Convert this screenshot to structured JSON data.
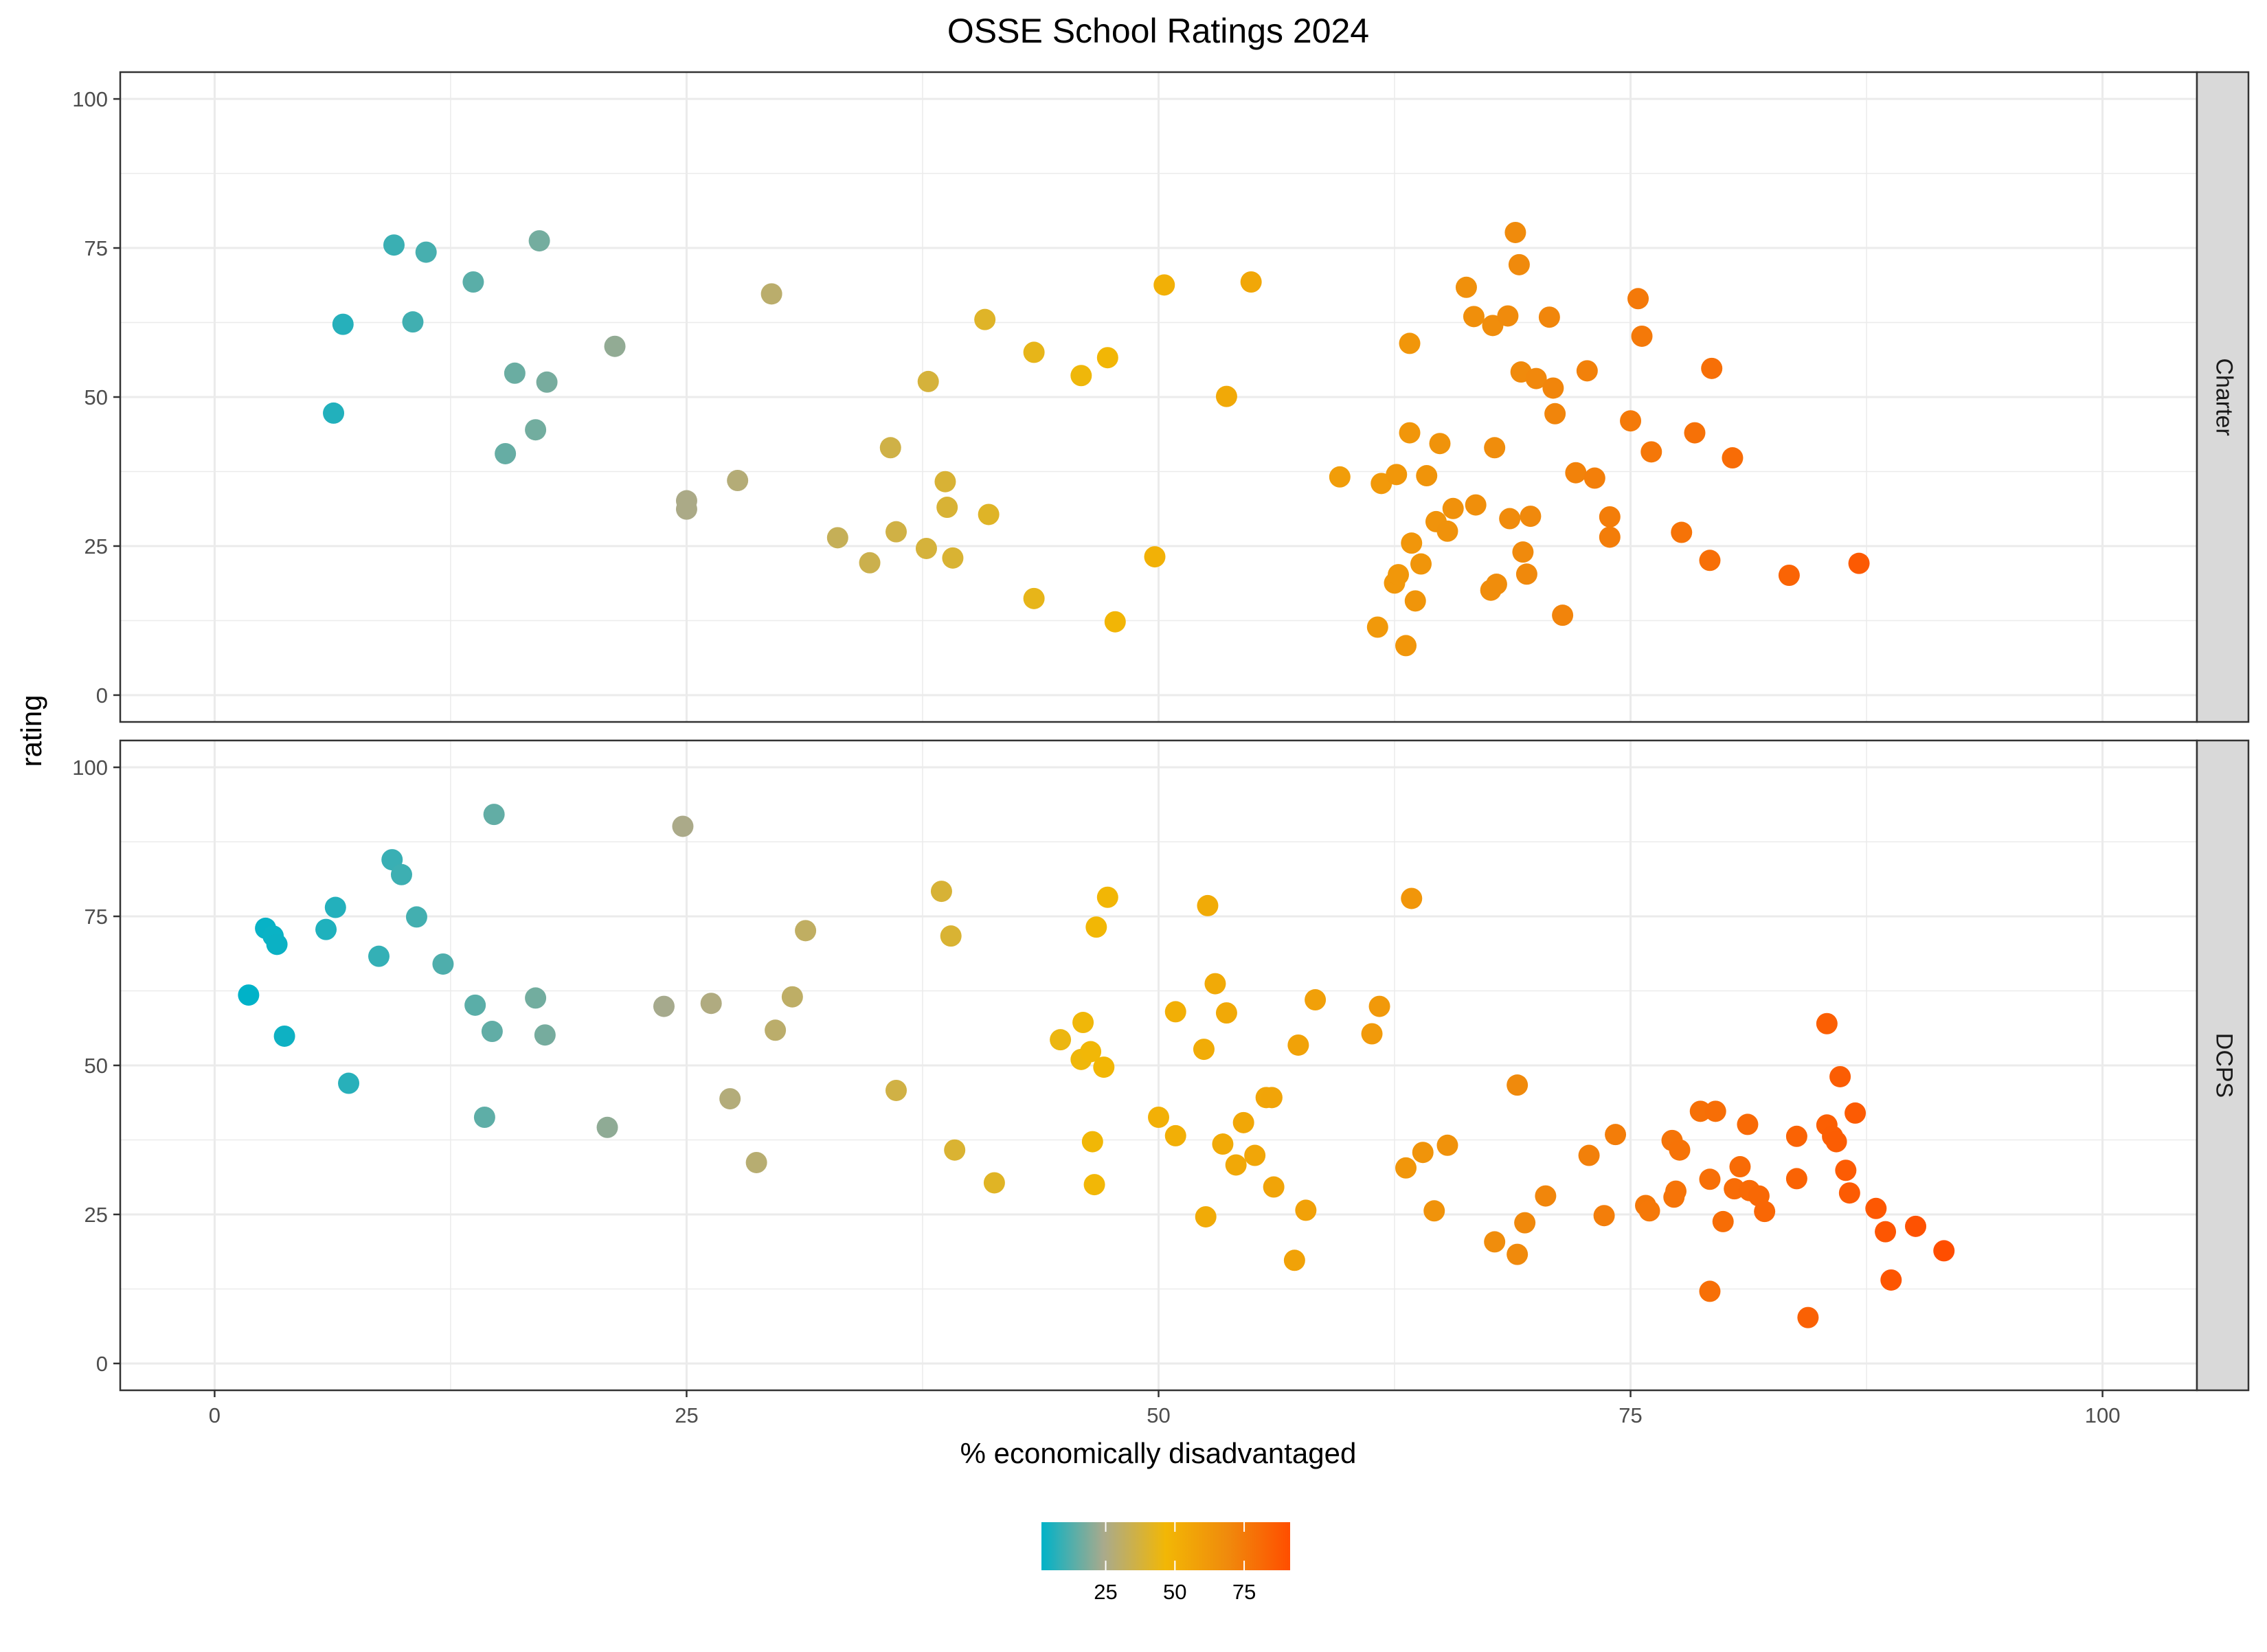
{
  "chart_data": {
    "type": "scatter",
    "title": "OSSE School Ratings 2024",
    "xlabel": "% economically disadvantaged",
    "ylabel": "rating",
    "xlim": [
      -5,
      105
    ],
    "ylim": [
      -4.5,
      104.5
    ],
    "x_ticks": [
      "0",
      "25",
      "50",
      "75",
      "100"
    ],
    "y_ticks": [
      "0",
      "25",
      "50",
      "75",
      "100"
    ],
    "grid": true,
    "facets": [
      {
        "name": "Charter",
        "points": [
          [
            6.3,
            47.3
          ],
          [
            6.8,
            62.2
          ],
          [
            9.5,
            75.5
          ],
          [
            11.2,
            74.3
          ],
          [
            10.5,
            62.6
          ],
          [
            13.7,
            69.3
          ],
          [
            17.2,
            76.2
          ],
          [
            15.9,
            54
          ],
          [
            17.6,
            52.5
          ],
          [
            17,
            44.5
          ],
          [
            15.4,
            40.5
          ],
          [
            21.2,
            58.5
          ],
          [
            25,
            32.6
          ],
          [
            25,
            31.2
          ],
          [
            27.7,
            36
          ],
          [
            29.5,
            67.3
          ],
          [
            33,
            26.4
          ],
          [
            34.7,
            22.2
          ],
          [
            35.8,
            41.5
          ],
          [
            36.1,
            27.4
          ],
          [
            37.7,
            24.6
          ],
          [
            37.8,
            52.6
          ],
          [
            38.7,
            35.8
          ],
          [
            38.8,
            31.5
          ],
          [
            39.1,
            23
          ],
          [
            40.8,
            63
          ],
          [
            41,
            30.3
          ],
          [
            43.4,
            57.5
          ],
          [
            43.4,
            16.2
          ],
          [
            45.9,
            53.6
          ],
          [
            47.3,
            56.6
          ],
          [
            47.7,
            12.3
          ],
          [
            49.8,
            23.2
          ],
          [
            50.3,
            68.8
          ],
          [
            53.6,
            50.1
          ],
          [
            54.9,
            69.3
          ],
          [
            59.6,
            36.6
          ],
          [
            61.6,
            11.4
          ],
          [
            61.8,
            35.5
          ],
          [
            62.5,
            18.8
          ],
          [
            62.7,
            20.2
          ],
          [
            62.6,
            37
          ],
          [
            63.1,
            8.3
          ],
          [
            63.3,
            59
          ],
          [
            63.3,
            44
          ],
          [
            63.4,
            25.5
          ],
          [
            63.6,
            15.8
          ],
          [
            63.9,
            22
          ],
          [
            64.2,
            36.8
          ],
          [
            64.7,
            29.1
          ],
          [
            64.9,
            42.2
          ],
          [
            65.3,
            27.5
          ],
          [
            65.6,
            31.3
          ],
          [
            66.3,
            68.4
          ],
          [
            66.7,
            63.5
          ],
          [
            66.8,
            31.9
          ],
          [
            67.6,
            17.6
          ],
          [
            67.7,
            62
          ],
          [
            67.8,
            41.5
          ],
          [
            67.9,
            18.6
          ],
          [
            68.5,
            63.6
          ],
          [
            68.6,
            29.6
          ],
          [
            68.9,
            77.6
          ],
          [
            69.1,
            72.2
          ],
          [
            69.2,
            54.2
          ],
          [
            69.3,
            24
          ],
          [
            69.5,
            20.3
          ],
          [
            69.7,
            30
          ],
          [
            70,
            53.1
          ],
          [
            70.7,
            63.4
          ],
          [
            70.9,
            51.5
          ],
          [
            71,
            47.2
          ],
          [
            71.4,
            13.4
          ],
          [
            72.1,
            37.3
          ],
          [
            72.7,
            54.4
          ],
          [
            73.1,
            36.4
          ],
          [
            73.9,
            29.9
          ],
          [
            73.9,
            26.5
          ],
          [
            75,
            46
          ],
          [
            75.4,
            66.5
          ],
          [
            75.6,
            60.2
          ],
          [
            76.1,
            40.8
          ],
          [
            77.7,
            27.3
          ],
          [
            78.4,
            44
          ],
          [
            79.2,
            22.6
          ],
          [
            79.3,
            54.8
          ],
          [
            80.4,
            39.8
          ],
          [
            83.4,
            20.1
          ],
          [
            87.1,
            22.1
          ]
        ]
      },
      {
        "name": "DCPS",
        "points": [
          [
            1.8,
            61.8
          ],
          [
            2.7,
            73
          ],
          [
            3.1,
            71.7
          ],
          [
            3.3,
            70.3
          ],
          [
            3.7,
            54.9
          ],
          [
            5.9,
            72.8
          ],
          [
            6.4,
            76.5
          ],
          [
            7.1,
            47
          ],
          [
            8.7,
            68.3
          ],
          [
            9.4,
            84.5
          ],
          [
            9.9,
            82
          ],
          [
            10.7,
            74.9
          ],
          [
            12.1,
            67
          ],
          [
            13.8,
            60.1
          ],
          [
            14.3,
            41.3
          ],
          [
            14.7,
            55.7
          ],
          [
            14.8,
            92.1
          ],
          [
            17,
            61.3
          ],
          [
            17.5,
            55.1
          ],
          [
            20.8,
            39.6
          ],
          [
            23.8,
            59.9
          ],
          [
            24.8,
            90.1
          ],
          [
            26.3,
            60.4
          ],
          [
            27.3,
            44.4
          ],
          [
            28.7,
            33.7
          ],
          [
            29.7,
            55.9
          ],
          [
            30.6,
            61.5
          ],
          [
            31.3,
            72.6
          ],
          [
            36.1,
            45.8
          ],
          [
            38.5,
            79.2
          ],
          [
            39,
            71.7
          ],
          [
            39.2,
            35.8
          ],
          [
            41.3,
            30.3
          ],
          [
            44.8,
            54.3
          ],
          [
            45.9,
            51
          ],
          [
            46,
            57.2
          ],
          [
            46.4,
            52.3
          ],
          [
            46.5,
            37.2
          ],
          [
            46.6,
            30
          ],
          [
            46.7,
            73.2
          ],
          [
            47.1,
            49.7
          ],
          [
            47.3,
            78.2
          ],
          [
            50,
            41.3
          ],
          [
            50.9,
            38.2
          ],
          [
            50.9,
            59
          ],
          [
            52.4,
            52.7
          ],
          [
            52.5,
            24.6
          ],
          [
            52.6,
            76.8
          ],
          [
            53,
            63.7
          ],
          [
            53.4,
            36.8
          ],
          [
            53.6,
            58.8
          ],
          [
            54.1,
            33.3
          ],
          [
            54.5,
            40.4
          ],
          [
            55.1,
            34.9
          ],
          [
            55.7,
            44.6
          ],
          [
            56,
            44.6
          ],
          [
            56.1,
            29.6
          ],
          [
            57.2,
            17.3
          ],
          [
            57.4,
            53.4
          ],
          [
            57.8,
            25.7
          ],
          [
            58.3,
            61
          ],
          [
            61.3,
            55.3
          ],
          [
            61.7,
            59.9
          ],
          [
            63.1,
            32.8
          ],
          [
            63.4,
            78
          ],
          [
            64,
            35.4
          ],
          [
            64.6,
            25.6
          ],
          [
            65.3,
            36.6
          ],
          [
            67.8,
            20.4
          ],
          [
            69,
            46.7
          ],
          [
            69,
            18.3
          ],
          [
            69.4,
            23.6
          ],
          [
            70.5,
            28.1
          ],
          [
            72.8,
            34.9
          ],
          [
            73.6,
            24.8
          ],
          [
            74.2,
            38.4
          ],
          [
            75.8,
            26.5
          ],
          [
            76,
            25.6
          ],
          [
            77.2,
            37.4
          ],
          [
            77.3,
            27.9
          ],
          [
            77.4,
            28.9
          ],
          [
            77.6,
            35.8
          ],
          [
            78.7,
            42.3
          ],
          [
            79.2,
            30.9
          ],
          [
            79.2,
            12.1
          ],
          [
            79.5,
            42.3
          ],
          [
            79.9,
            23.8
          ],
          [
            80.5,
            29.3
          ],
          [
            80.8,
            33
          ],
          [
            81.2,
            40.1
          ],
          [
            81.3,
            29
          ],
          [
            81.8,
            28.1
          ],
          [
            82.1,
            25.5
          ],
          [
            83.8,
            38.1
          ],
          [
            83.8,
            31
          ],
          [
            84.4,
            7.7
          ],
          [
            85.4,
            57
          ],
          [
            85.4,
            40
          ],
          [
            85.7,
            38.1
          ],
          [
            85.9,
            37.2
          ],
          [
            86.1,
            48.1
          ],
          [
            86.4,
            32.4
          ],
          [
            86.6,
            28.6
          ],
          [
            86.9,
            42
          ],
          [
            88,
            26
          ],
          [
            88.5,
            22.1
          ],
          [
            88.8,
            14
          ],
          [
            90.1,
            23
          ],
          [
            91.6,
            18.9
          ]
        ]
      }
    ],
    "color_scale": {
      "variable": "% economically disadvantaged",
      "legend_ticks": [
        "25",
        "50",
        "75"
      ],
      "range": [
        1.8,
        91.6
      ],
      "stops": [
        "#00B2C8",
        "#A9AA8C",
        "#F2B705",
        "#F08A0C",
        "#FF4E00"
      ]
    }
  }
}
